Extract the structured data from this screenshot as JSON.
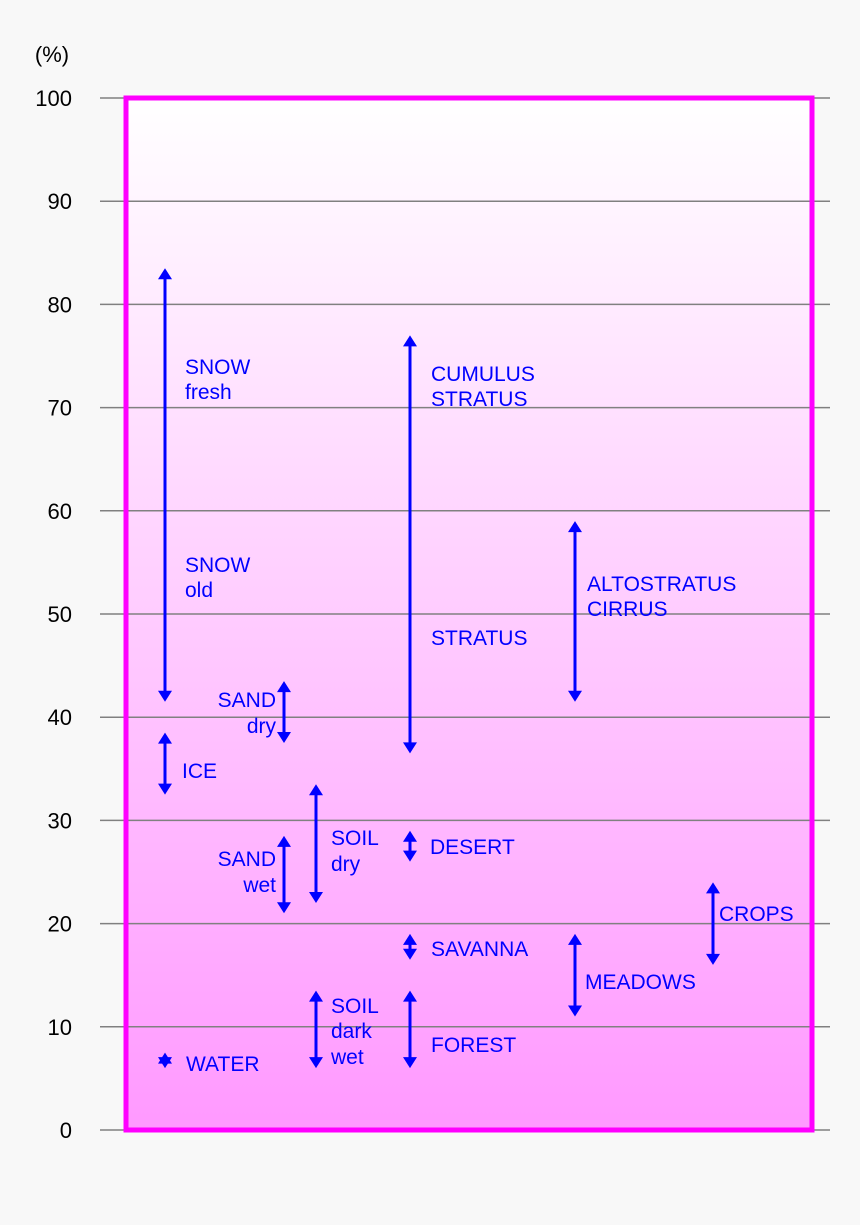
{
  "chart_data": {
    "type": "range",
    "ylabel": "(%)",
    "ylim": [
      0,
      100
    ],
    "y_ticks": [
      0,
      10,
      20,
      30,
      40,
      50,
      60,
      70,
      80,
      90,
      100
    ],
    "grid": true,
    "colors": {
      "frame": "#ff00ff",
      "fill_top": "#ffffff",
      "fill_bottom": "#ff99ff",
      "arrows": "#0000ff",
      "labels": "#0000ff",
      "grid": "#808080"
    },
    "ranges": [
      {
        "id": "snow",
        "low": 41.5,
        "high": 83.5,
        "labels": [
          "SNOW",
          "fresh",
          "SNOW",
          "old"
        ]
      },
      {
        "id": "sand-dry",
        "low": 37.5,
        "high": 43.5,
        "labels": [
          "SAND",
          "dry"
        ]
      },
      {
        "id": "ice",
        "low": 32.5,
        "high": 38.5,
        "labels": [
          "ICE"
        ]
      },
      {
        "id": "soil-dry",
        "low": 22.0,
        "high": 33.5,
        "labels": [
          "SOIL",
          "dry"
        ]
      },
      {
        "id": "sand-wet",
        "low": 21.0,
        "high": 28.5,
        "labels": [
          "SAND",
          "wet"
        ]
      },
      {
        "id": "soil-dark-wet",
        "low": 6.0,
        "high": 13.5,
        "labels": [
          "SOIL",
          "dark",
          "wet"
        ]
      },
      {
        "id": "water",
        "low": 6.0,
        "high": 7.5,
        "labels": [
          "WATER"
        ]
      },
      {
        "id": "cumulus-stratus",
        "low": 36.5,
        "high": 77.0,
        "labels": [
          "CUMULUS",
          "STRATUS",
          "STRATUS"
        ]
      },
      {
        "id": "desert",
        "low": 26.0,
        "high": 29.0,
        "labels": [
          "DESERT"
        ]
      },
      {
        "id": "savanna",
        "low": 16.5,
        "high": 19.0,
        "labels": [
          "SAVANNA"
        ]
      },
      {
        "id": "forest",
        "low": 6.0,
        "high": 13.5,
        "labels": [
          "FOREST"
        ]
      },
      {
        "id": "altostratus-cirrus",
        "low": 41.5,
        "high": 59.0,
        "labels": [
          "ALTOSTRATUS",
          "CIRRUS"
        ]
      },
      {
        "id": "meadows",
        "low": 11.0,
        "high": 19.0,
        "labels": [
          "MEADOWS"
        ]
      },
      {
        "id": "crops",
        "low": 16.0,
        "high": 24.0,
        "labels": [
          "CROPS"
        ]
      }
    ]
  }
}
